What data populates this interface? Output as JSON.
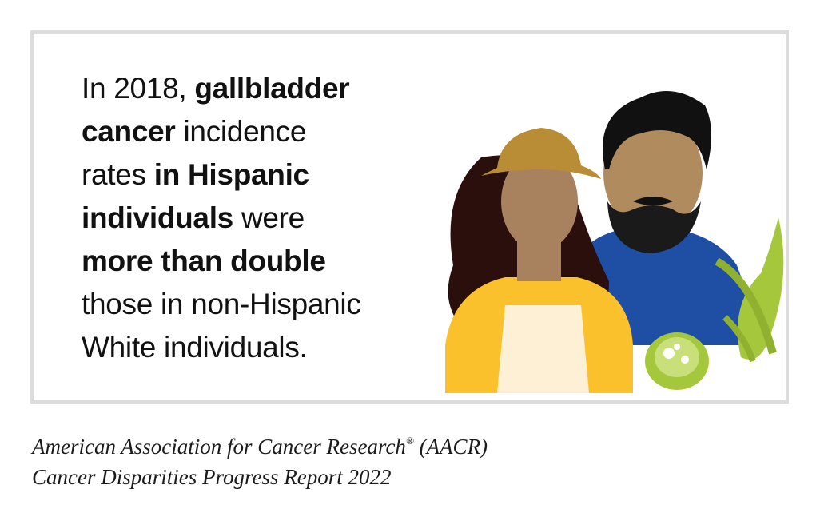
{
  "statement": {
    "p1": "In 2018, ",
    "b1": "gallbladder",
    "b2": "cancer",
    "p2": " incidence",
    "p3": "rates ",
    "b3": "in Hispanic",
    "b4": "individuals",
    "p4": " were",
    "b5": "more than double",
    "p5": "those in non-Hispanic",
    "p6": "White individuals."
  },
  "caption": {
    "line1_prefix": "American Association for Cancer Research",
    "registered_mark": "®",
    "line1_suffix": " (AACR)",
    "line2": "Cancer Disparities Progress Report 2022"
  },
  "illustration": {
    "icons": [
      "woman-with-hat-icon",
      "bearded-man-icon",
      "gallbladder-icon"
    ],
    "colors": {
      "hat": "#b98d35",
      "woman_hair": "#2b0f0c",
      "woman_skin": "#a8825e",
      "cardigan": "#fbc12d",
      "shirt": "#fdf0d5",
      "man_hair": "#111111",
      "man_skin": "#b08b5e",
      "sweater": "#1f4fa5",
      "gallbladder": "#a4c73b"
    }
  }
}
